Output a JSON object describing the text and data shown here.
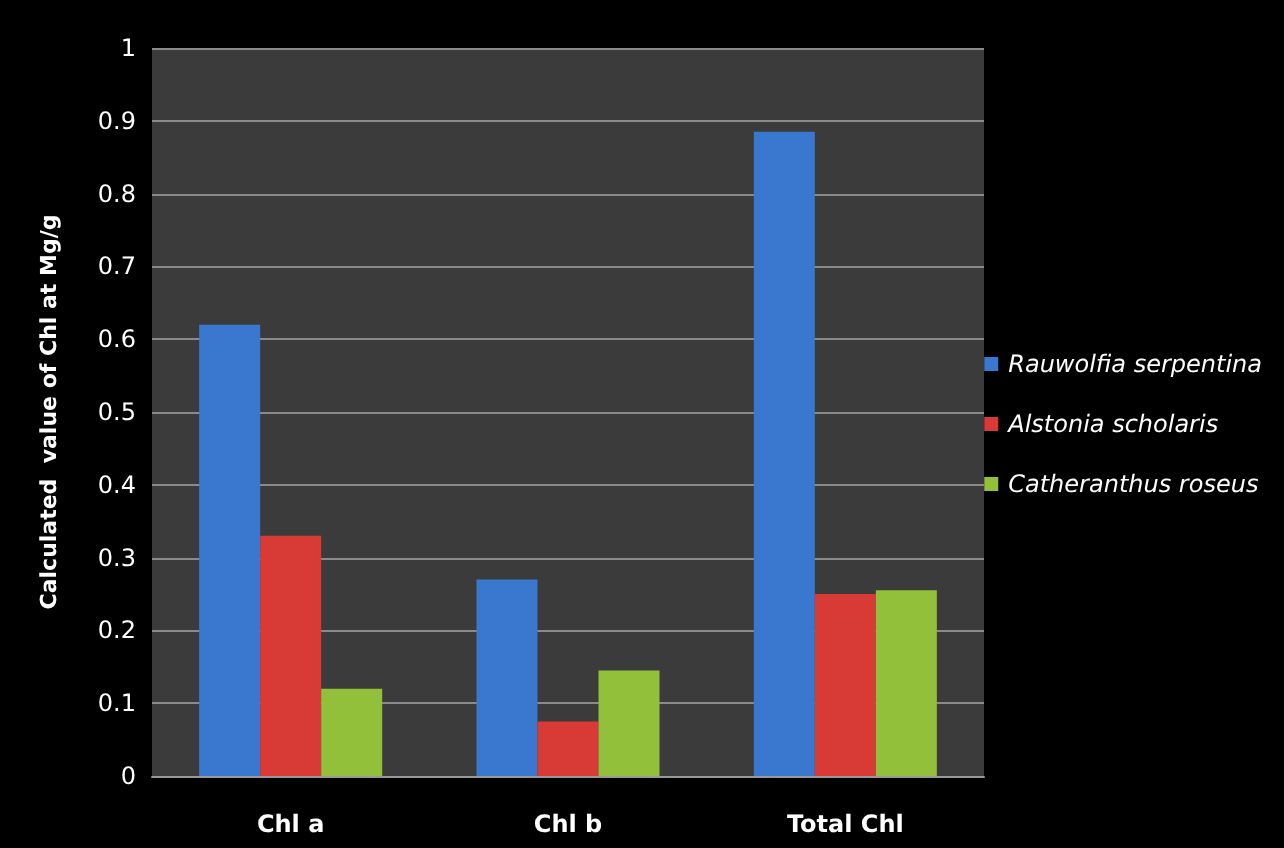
{
  "chart_data": {
    "type": "bar",
    "ylabel": "Calculated  value of Chl at Mg/g",
    "categories": [
      "Chl a",
      "Chl b",
      "Total Chl"
    ],
    "series": [
      {
        "name": "Rauwolfia serpentina",
        "color": "#3a78d0",
        "values": [
          0.62,
          0.27,
          0.885
        ]
      },
      {
        "name": "Alstonia scholaris",
        "color": "#d83a36",
        "values": [
          0.33,
          0.075,
          0.25
        ]
      },
      {
        "name": "Catheranthus roseus",
        "color": "#92c03a",
        "values": [
          0.12,
          0.145,
          0.255
        ]
      }
    ],
    "ylim": [
      0,
      1
    ],
    "yticks": [
      0,
      0.1,
      0.2,
      0.3,
      0.4,
      0.5,
      0.6,
      0.7,
      0.8,
      0.9,
      1
    ],
    "grid": "y",
    "legend": "right"
  }
}
